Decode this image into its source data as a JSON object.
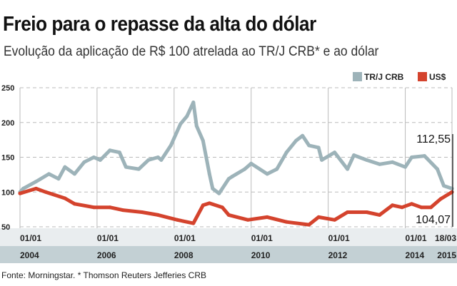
{
  "title": "Freio para o repasse da alta do dólar",
  "subtitle": "Evolução da aplicação de R$ 100 atrelada ao TR/J CRB* e ao dólar",
  "source": "Fonte: Morningstar. * Thomson Reuters Jefferies CRB",
  "chart_data": {
    "type": "line",
    "title": "Freio para o repasse da alta do dólar",
    "subtitle": "Evolução da aplicação de R$ 100 atrelada ao TR/J CRB* e ao dólar",
    "ylim": [
      50,
      250
    ],
    "yticks": [
      "250",
      "200",
      "150",
      "100",
      "50"
    ],
    "ytick_values": [
      250,
      200,
      150,
      100,
      50
    ],
    "xlim": [
      "2004-01-01",
      "2015-03-18"
    ],
    "xticks": [
      {
        "date": "2004-01-01",
        "day": "01/01",
        "year": "2004"
      },
      {
        "date": "2006-01-01",
        "day": "01/01",
        "year": "2006"
      },
      {
        "date": "2008-01-01",
        "day": "01/01",
        "year": "2008"
      },
      {
        "date": "2010-01-01",
        "day": "01/01",
        "year": "2010"
      },
      {
        "date": "2012-01-01",
        "day": "01/01",
        "year": "2012"
      },
      {
        "date": "2014-01-01",
        "day": "01/01",
        "year": "2014"
      },
      {
        "date": "2015-03-18",
        "day": "18/03",
        "year": "2015"
      }
    ],
    "grid": "horizontal dashed, vertical solid at x ticks",
    "legend": "top-right",
    "annotations": [
      {
        "text": "112,55",
        "position": "above"
      },
      {
        "text": "104,07",
        "position": "below"
      }
    ],
    "series": [
      {
        "name": "TR/J CRB",
        "color": "#9db3b9",
        "points": [
          [
            "2004-01",
            100
          ],
          [
            "2004-02",
            105
          ],
          [
            "2004-06",
            115
          ],
          [
            "2004-10",
            126
          ],
          [
            "2005-01",
            119
          ],
          [
            "2005-03",
            136
          ],
          [
            "2005-06",
            126
          ],
          [
            "2005-09",
            143
          ],
          [
            "2005-12",
            150
          ],
          [
            "2006-02",
            146
          ],
          [
            "2006-05",
            160
          ],
          [
            "2006-08",
            157
          ],
          [
            "2006-10",
            136
          ],
          [
            "2007-02",
            133
          ],
          [
            "2007-05",
            146
          ],
          [
            "2007-08",
            150
          ],
          [
            "2007-09",
            146
          ],
          [
            "2007-12",
            167
          ],
          [
            "2008-03",
            198
          ],
          [
            "2008-05",
            209
          ],
          [
            "2008-07",
            229
          ],
          [
            "2008-08",
            195
          ],
          [
            "2008-10",
            174
          ],
          [
            "2008-12",
            126
          ],
          [
            "2009-01",
            105
          ],
          [
            "2009-03",
            98
          ],
          [
            "2009-06",
            119
          ],
          [
            "2009-07",
            122
          ],
          [
            "2009-11",
            133
          ],
          [
            "2010-01",
            141
          ],
          [
            "2010-06",
            126
          ],
          [
            "2010-09",
            133
          ],
          [
            "2010-12",
            157
          ],
          [
            "2011-03",
            174
          ],
          [
            "2011-05",
            181
          ],
          [
            "2011-07",
            167
          ],
          [
            "2011-10",
            164
          ],
          [
            "2011-11",
            146
          ],
          [
            "2012-03",
            157
          ],
          [
            "2012-07",
            133
          ],
          [
            "2012-09",
            153
          ],
          [
            "2013-01",
            146
          ],
          [
            "2013-05",
            140
          ],
          [
            "2013-09",
            143
          ],
          [
            "2014-01",
            136
          ],
          [
            "2014-03",
            150
          ],
          [
            "2014-07",
            152
          ],
          [
            "2014-11",
            133
          ],
          [
            "2015-01",
            109
          ],
          [
            "2015-03-18",
            105
          ]
        ]
      },
      {
        "name": "US$",
        "color": "#d4432d",
        "points": [
          [
            "2004-01",
            98
          ],
          [
            "2004-06",
            105
          ],
          [
            "2004-09",
            100
          ],
          [
            "2005-03",
            91
          ],
          [
            "2005-06",
            83
          ],
          [
            "2005-12",
            78
          ],
          [
            "2006-05",
            78
          ],
          [
            "2006-09",
            74
          ],
          [
            "2007-03",
            71
          ],
          [
            "2007-08",
            67
          ],
          [
            "2008-02",
            60
          ],
          [
            "2008-07",
            55
          ],
          [
            "2008-10",
            81
          ],
          [
            "2008-12",
            84
          ],
          [
            "2009-04",
            78
          ],
          [
            "2009-06",
            67
          ],
          [
            "2009-12",
            60
          ],
          [
            "2010-06",
            64
          ],
          [
            "2010-12",
            57
          ],
          [
            "2011-07",
            53
          ],
          [
            "2011-10",
            64
          ],
          [
            "2012-03",
            60
          ],
          [
            "2012-07",
            71
          ],
          [
            "2013-01",
            71
          ],
          [
            "2013-05",
            67
          ],
          [
            "2013-09",
            81
          ],
          [
            "2013-12",
            78
          ],
          [
            "2014-03",
            83
          ],
          [
            "2014-06",
            78
          ],
          [
            "2014-09",
            78
          ],
          [
            "2014-12",
            90
          ],
          [
            "2015-03-18",
            100
          ]
        ]
      }
    ]
  }
}
